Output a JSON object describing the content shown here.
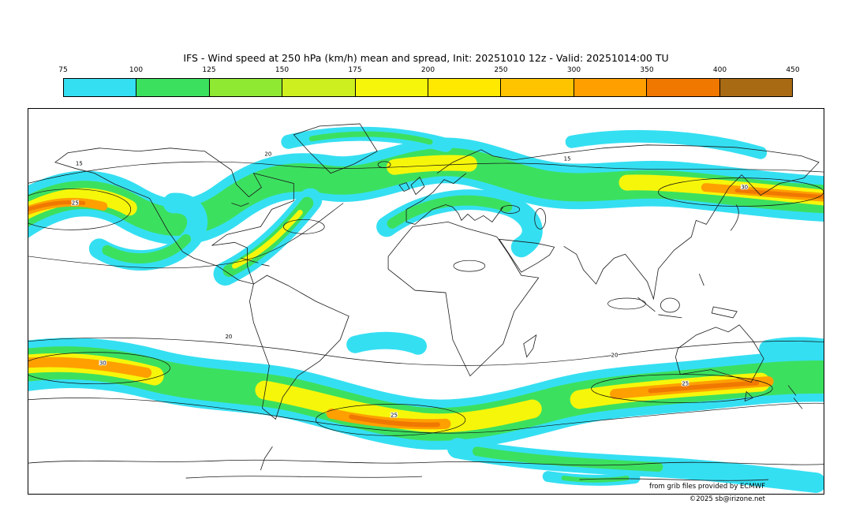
{
  "header": {
    "title": "IFS - Wind speed at 250 hPa (km/h) mean and spread, Init: 20251010 12z - Valid: 20251014:00 TU"
  },
  "chart_data": {
    "type": "heatmap",
    "title": "IFS - Wind speed at 250 hPa (km/h) mean and spread, Init: 20251010 12z - Valid: 20251014:00 TU",
    "model": "IFS",
    "variable": "Wind speed at 250 hPa (km/h)",
    "statistic": "mean and spread",
    "init_time": "20251010 12z",
    "valid_time": "20251014:00 TU",
    "projection": "global equirectangular world map",
    "legend_position": "top",
    "colorbar": {
      "unit": "km/h",
      "levels": [
        "75",
        "100",
        "125",
        "150",
        "175",
        "200",
        "250",
        "300",
        "350",
        "400",
        "450"
      ],
      "colors": [
        "#35dff2",
        "#3ce05f",
        "#8fe832",
        "#cdee1f",
        "#f6f60a",
        "#ffe900",
        "#ffc400",
        "#ffa000",
        "#f07800",
        "#a96a14"
      ]
    },
    "contour_labels": [
      "15",
      "20",
      "25",
      "30",
      "25",
      "20",
      "15",
      "25",
      "30",
      "20"
    ],
    "attribution": [
      "from grib files provided by ECMWF",
      "©2025 sb@irizone.net"
    ]
  },
  "map": {
    "attribution_line1": "from grib files provided by ECMWF",
    "attribution_line2": "©2025 sb@irizone.net"
  }
}
